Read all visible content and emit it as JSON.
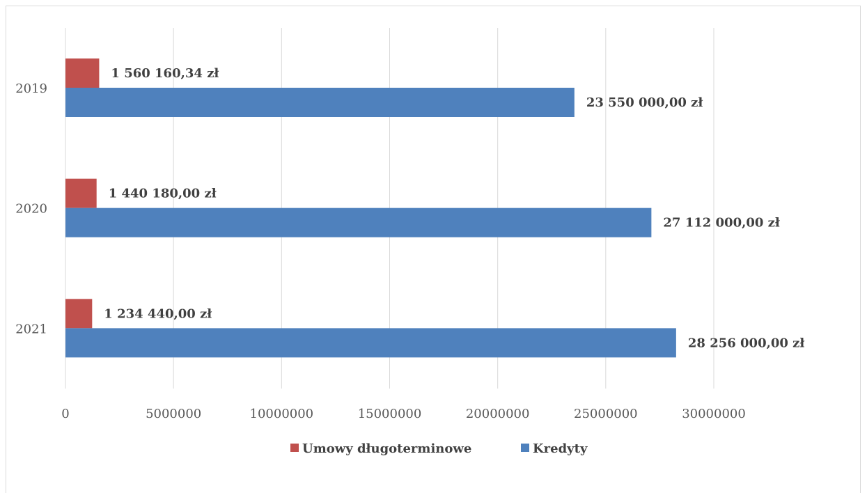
{
  "chart_data": {
    "type": "bar",
    "orientation": "horizontal",
    "categories": [
      "2019",
      "2020",
      "2021"
    ],
    "series": [
      {
        "name": "Umowy długoterminowe",
        "color": "#C0504D",
        "values": [
          1560160.34,
          1440180.0,
          1234440.0
        ],
        "labels": [
          "1 560 160,34 zł",
          "1 440 180,00 zł",
          "1 234 440,00 zł"
        ]
      },
      {
        "name": "Kredyty",
        "color": "#4F81BD",
        "values": [
          23550000.0,
          27112000.0,
          28256000.0
        ],
        "labels": [
          "23 550 000,00 zł",
          "27 112 000,00 zł",
          "28 256 000,00 zł"
        ]
      }
    ],
    "xticks": [
      "0",
      "5000000",
      "10000000",
      "15000000",
      "20000000",
      "25000000",
      "30000000"
    ],
    "xlim": [
      0,
      30000000
    ],
    "grid": true,
    "legend_position": "bottom"
  }
}
